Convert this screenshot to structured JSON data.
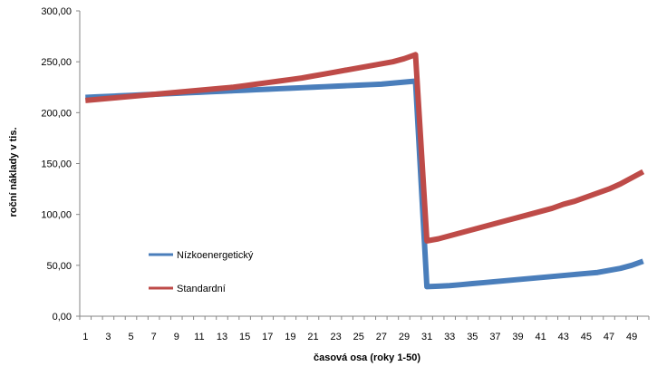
{
  "chart_data": {
    "type": "line",
    "xlabel": "časová osa (roky 1-50)",
    "ylabel": "roční náklady v tis.",
    "ylim": [
      0,
      300
    ],
    "y_ticks": [
      "0,00",
      "50,00",
      "100,00",
      "150,00",
      "200,00",
      "250,00",
      "300,00"
    ],
    "x_tick_labels": [
      "1",
      "3",
      "5",
      "7",
      "9",
      "11",
      "13",
      "15",
      "17",
      "19",
      "21",
      "23",
      "25",
      "27",
      "29",
      "31",
      "33",
      "35",
      "37",
      "39",
      "41",
      "43",
      "45",
      "47",
      "49"
    ],
    "x": [
      1,
      2,
      3,
      4,
      5,
      6,
      7,
      8,
      9,
      10,
      11,
      12,
      13,
      14,
      15,
      16,
      17,
      18,
      19,
      20,
      21,
      22,
      23,
      24,
      25,
      26,
      27,
      28,
      29,
      30,
      31,
      32,
      33,
      34,
      35,
      36,
      37,
      38,
      39,
      40,
      41,
      42,
      43,
      44,
      45,
      46,
      47,
      48,
      49,
      50
    ],
    "grid": false,
    "legend_position": "left-center",
    "series": [
      {
        "name": "Nízkoenergetický",
        "color": "#4a7ebb",
        "values": [
          215,
          215.5,
          216,
          216.5,
          217,
          217.5,
          218,
          218.5,
          219,
          219.5,
          220,
          220.5,
          221,
          221.5,
          222,
          222.5,
          223,
          223.5,
          224,
          224.5,
          225,
          225.5,
          226,
          226.5,
          227,
          227.5,
          228,
          229,
          230,
          231,
          29,
          29.5,
          30,
          31,
          32,
          33,
          34,
          35,
          36,
          37,
          38,
          39,
          40,
          41,
          42,
          43,
          45,
          47,
          50,
          54
        ]
      },
      {
        "name": "Standardní",
        "color": "#be4b48",
        "values": [
          212,
          213,
          214,
          215,
          216,
          217,
          218,
          219,
          220,
          221,
          222,
          223,
          224,
          225,
          226.5,
          228,
          229.5,
          231,
          232.5,
          234,
          236,
          238,
          240,
          242,
          244,
          246,
          248,
          250,
          253,
          257,
          74,
          76,
          79,
          82,
          85,
          88,
          91,
          94,
          97,
          100,
          103,
          106,
          110,
          113,
          117,
          121,
          125,
          130,
          136,
          142
        ]
      }
    ]
  }
}
